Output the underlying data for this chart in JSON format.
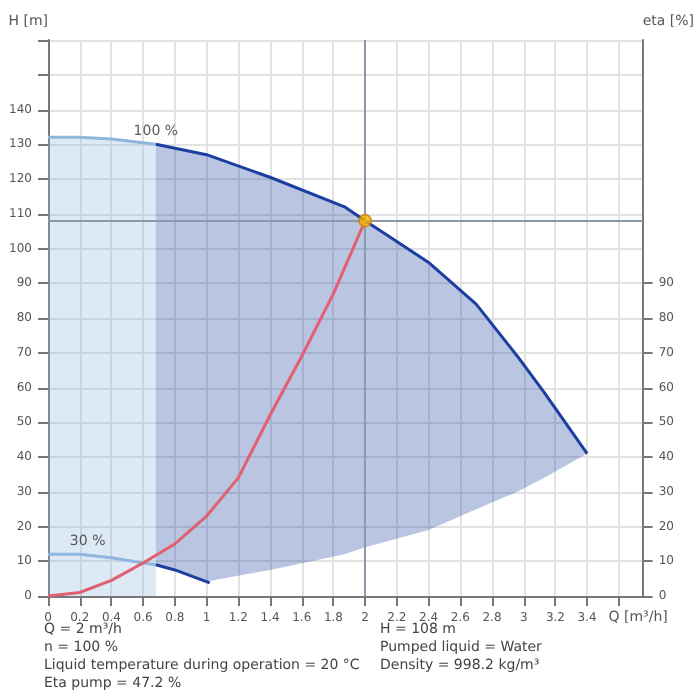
{
  "chart_data": {
    "type": "line",
    "xlabel": "Q [m³/h]",
    "ylabel": "H [m]",
    "y2label": "eta [%]",
    "xlim": [
      0,
      3.75
    ],
    "xticks": [
      0,
      0.2,
      0.4,
      0.6,
      0.8,
      1.0,
      1.2,
      1.4,
      1.6,
      1.8,
      2.0,
      2.2,
      2.4,
      2.6,
      2.8,
      3.0,
      3.2,
      3.4,
      {
        "value": 3.6,
        "label": null
      }
    ],
    "ylim": [
      0,
      160
    ],
    "yticks": [
      0,
      10,
      20,
      30,
      40,
      50,
      60,
      70,
      80,
      90,
      100,
      110,
      120,
      130,
      140,
      {
        "value": 150,
        "label": null
      },
      {
        "value": 160,
        "label": null
      }
    ],
    "y2lim": [
      0,
      160
    ],
    "y2ticks": [
      0,
      10,
      20,
      30,
      40,
      50,
      60,
      70,
      80,
      90
    ],
    "grid": true,
    "series": [
      {
        "color": "#8fb6dc",
        "x": [
          0,
          0.2,
          0.4,
          0.68
        ],
        "values": [
          132,
          132,
          131.5,
          130
        ],
        "lower": [
          0,
          0,
          0,
          0
        ],
        "upper": [
          132,
          132,
          131.5,
          130
        ]
      },
      {
        "color": "#1a3fa0",
        "x": [
          0.68,
          1.0,
          1.4,
          1.87,
          2.0,
          2.4,
          2.7,
          2.96,
          3.13,
          3.4
        ],
        "values": [
          130,
          127,
          120.5,
          112,
          108,
          96,
          84,
          69,
          58.5,
          41
        ],
        "lower": [
          9,
          4.2,
          7.5,
          12,
          14,
          19,
          25,
          30,
          34,
          41
        ],
        "upper": [
          130,
          127,
          120.5,
          112,
          108,
          96,
          84,
          69,
          58.5,
          41
        ]
      },
      {
        "color": "#8fb6dc",
        "x": [
          0,
          0.2,
          0.4,
          0.6,
          0.68
        ],
        "values": [
          12,
          12,
          11,
          9.5,
          9
        ]
      },
      {
        "color": "#1a3fa0",
        "x": [
          0.68,
          0.8,
          1.02
        ],
        "values": [
          9,
          7.5,
          3.8
        ]
      },
      {
        "color": "#e06070",
        "x": [
          0,
          0.2,
          0.4,
          0.6,
          0.8,
          1.0,
          1.2,
          1.4,
          1.6,
          1.8,
          2.0
        ],
        "values": [
          0,
          1,
          4.5,
          9.5,
          15,
          23,
          34,
          52,
          69,
          87,
          108
        ]
      },
      {
        "type": "scatter",
        "marker": "circle",
        "color": "#f5b400",
        "x": [
          2.0
        ],
        "values": [
          108
        ]
      }
    ],
    "ref_lines": [
      {
        "axis": "x",
        "value": 2.0,
        "color": "#8a9aa8"
      },
      {
        "axis": "y",
        "value": 108,
        "color": "#8a9aa8"
      }
    ],
    "annotations": [
      {
        "text": "100 %",
        "x": 0.68,
        "y": 130
      },
      {
        "text": "30 %",
        "x": 0.25,
        "y": 12
      },
      "Q = 2 m³/h",
      "H = 108 m",
      "n = 100 %",
      "Pumped liquid = Water",
      "Liquid temperature during operation = 20 °C",
      "Density = 998.2 kg/m³",
      "Eta pump = 47.2 %"
    ]
  }
}
